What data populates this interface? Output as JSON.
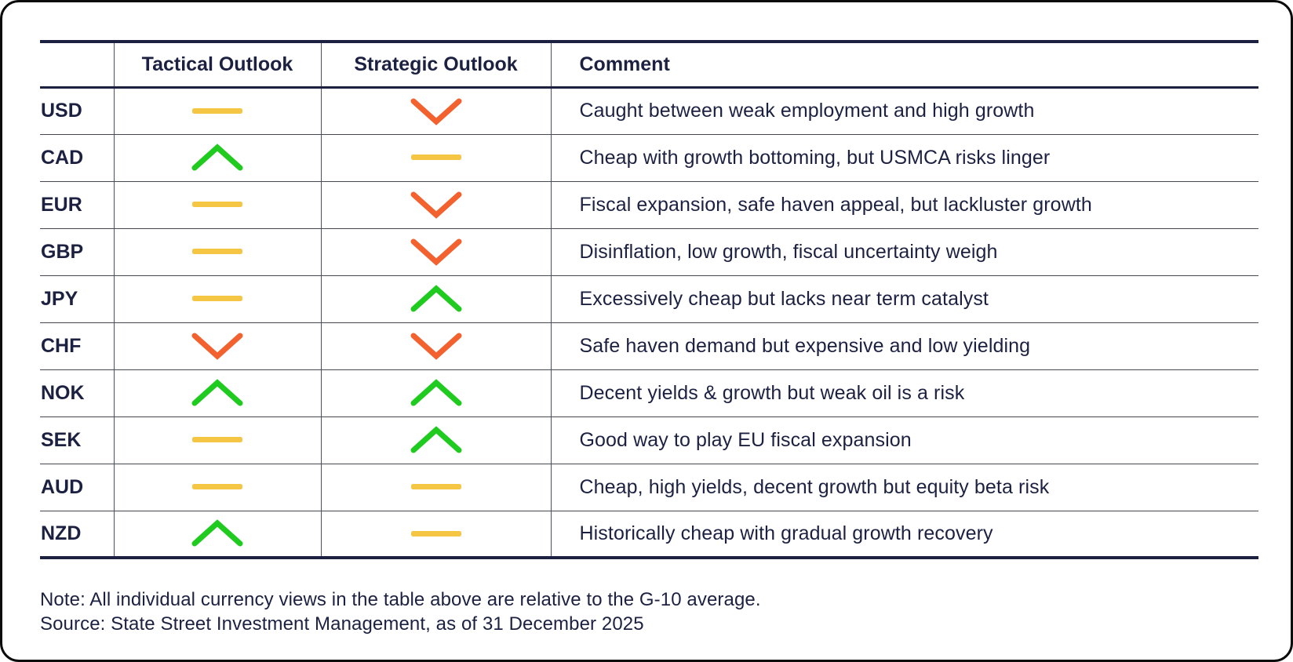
{
  "chart_data": {
    "type": "table",
    "title": "",
    "columns": [
      "",
      "Tactical Outlook",
      "Strategic Outlook",
      "Comment"
    ],
    "rows": [
      [
        "USD",
        "neutral",
        "negative",
        "Caught between weak employment and high growth"
      ],
      [
        "CAD",
        "positive",
        "neutral",
        "Cheap with growth bottoming, but USMCA risks linger"
      ],
      [
        "EUR",
        "neutral",
        "negative",
        "Fiscal expansion, safe haven appeal, but lackluster growth"
      ],
      [
        "GBP",
        "neutral",
        "negative",
        "Disinflation, low growth, fiscal uncertainty weigh"
      ],
      [
        "JPY",
        "neutral",
        "positive",
        "Excessively cheap but lacks near term catalyst"
      ],
      [
        "CHF",
        "negative",
        "negative",
        "Safe haven demand but expensive and low yielding"
      ],
      [
        "NOK",
        "positive",
        "positive",
        "Decent yields & growth but weak oil is a risk"
      ],
      [
        "SEK",
        "neutral",
        "positive",
        "Good way to play EU fiscal expansion"
      ],
      [
        "AUD",
        "neutral",
        "neutral",
        "Cheap, high yields, decent growth but equity beta risk"
      ],
      [
        "NZD",
        "positive",
        "neutral",
        "Historically cheap with gradual growth recovery"
      ]
    ],
    "icon_legend": {
      "positive": "green upward chevron",
      "neutral": "yellow horizontal dash",
      "negative": "orange downward chevron"
    },
    "layout_hints": {
      "grid": "horizontal row dividers with thick top, header and bottom rules"
    }
  },
  "icons": {
    "positive": {
      "name": "chevron-up-icon",
      "color": "#1FCB1F"
    },
    "neutral": {
      "name": "dash-icon",
      "color": "#F5C544"
    },
    "negative": {
      "name": "chevron-down-icon",
      "color": "#F2612E"
    }
  },
  "colors": {
    "text_navy": "#1c2142",
    "thick_rule": "#1c2142",
    "row_divider": "#45484f",
    "column_divider": "#4a4e61",
    "frame_border": "#0b0b0c",
    "background": "#ffffff"
  },
  "footnotes": {
    "note": "Note: All individual currency views in the table above are relative to the G-10 average.",
    "source": "Source: State Street Investment Management, as of 31 December 2025"
  }
}
